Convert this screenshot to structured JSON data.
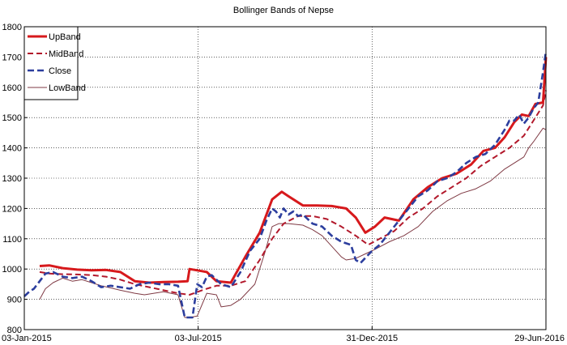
{
  "chart_data": {
    "type": "line",
    "title": "Bollinger Bands of Nepse",
    "xlabel": "",
    "ylabel": "",
    "grid": true,
    "legend_position": "top-left",
    "x_ticks": [
      "03-Jan-2015",
      "03-Jul-2015",
      "31-Dec-2015",
      "29-Jun-2016"
    ],
    "x_tick_days": [
      0,
      181,
      362,
      543
    ],
    "xlim_days": [
      0,
      543
    ],
    "ylim": [
      800,
      1800
    ],
    "y_ticks": [
      800,
      900,
      1000,
      1100,
      1200,
      1300,
      1400,
      1500,
      1600,
      1700,
      1800
    ],
    "series": [
      {
        "name": "UpBand",
        "color": "#d7191c",
        "style": "solid-thick",
        "x_days": [
          16,
          26,
          40,
          55,
          70,
          85,
          100,
          115,
          130,
          145,
          160,
          170,
          172,
          185,
          190,
          200,
          215,
          230,
          245,
          258,
          268,
          275,
          290,
          305,
          320,
          335,
          345,
          355,
          365,
          375,
          390,
          405,
          420,
          435,
          450,
          465,
          478,
          490,
          500,
          510,
          518,
          525,
          532,
          540,
          543
        ],
        "values": [
          1010,
          1012,
          1003,
          998,
          996,
          997,
          990,
          960,
          955,
          957,
          958,
          960,
          1000,
          993,
          990,
          960,
          955,
          1040,
          1120,
          1230,
          1255,
          1240,
          1210,
          1210,
          1208,
          1200,
          1170,
          1120,
          1140,
          1170,
          1160,
          1230,
          1270,
          1300,
          1315,
          1345,
          1390,
          1400,
          1435,
          1485,
          1510,
          1505,
          1545,
          1550,
          1700
        ]
      },
      {
        "name": "MidBand",
        "color": "#b2182b",
        "style": "dashed",
        "x_days": [
          16,
          26,
          40,
          55,
          70,
          85,
          100,
          115,
          130,
          145,
          160,
          172,
          185,
          200,
          215,
          230,
          245,
          258,
          270,
          285,
          300,
          315,
          330,
          345,
          358,
          370,
          385,
          400,
          415,
          430,
          445,
          460,
          475,
          490,
          505,
          520,
          530,
          540,
          543
        ],
        "values": [
          990,
          985,
          983,
          982,
          980,
          975,
          965,
          950,
          940,
          930,
          920,
          915,
          930,
          945,
          945,
          960,
          1030,
          1100,
          1150,
          1175,
          1175,
          1165,
          1140,
          1110,
          1080,
          1100,
          1125,
          1170,
          1200,
          1240,
          1270,
          1300,
          1340,
          1370,
          1400,
          1440,
          1490,
          1540,
          1590
        ]
      },
      {
        "name": "Close",
        "color": "#2c3e9e",
        "style": "dashed-thick",
        "x_days": [
          0,
          5,
          10,
          16,
          22,
          30,
          40,
          50,
          60,
          70,
          80,
          90,
          100,
          110,
          120,
          130,
          140,
          150,
          160,
          167,
          170,
          175,
          180,
          185,
          190,
          195,
          205,
          215,
          225,
          235,
          245,
          252,
          258,
          262,
          266,
          270,
          275,
          280,
          285,
          290,
          300,
          310,
          320,
          330,
          340,
          345,
          350,
          356,
          362,
          370,
          380,
          390,
          400,
          410,
          420,
          430,
          440,
          450,
          460,
          470,
          480,
          490,
          500,
          505,
          510,
          515,
          520,
          525,
          530,
          535,
          540,
          543
        ],
        "values": [
          910,
          925,
          935,
          960,
          985,
          990,
          975,
          970,
          975,
          960,
          940,
          945,
          940,
          935,
          950,
          955,
          950,
          950,
          945,
          840,
          840,
          840,
          950,
          940,
          975,
          980,
          950,
          940,
          990,
          1060,
          1100,
          1160,
          1200,
          1190,
          1170,
          1200,
          1180,
          1190,
          1175,
          1180,
          1150,
          1140,
          1110,
          1090,
          1080,
          1030,
          1020,
          1040,
          1060,
          1080,
          1120,
          1160,
          1200,
          1240,
          1260,
          1290,
          1300,
          1320,
          1350,
          1370,
          1380,
          1410,
          1460,
          1490,
          1490,
          1510,
          1480,
          1500,
          1530,
          1550,
          1650,
          1720
        ]
      },
      {
        "name": "LowBand",
        "color": "#7f3a44",
        "style": "solid-thin",
        "x_days": [
          16,
          22,
          30,
          40,
          50,
          60,
          70,
          80,
          100,
          115,
          125,
          135,
          145,
          160,
          167,
          172,
          180,
          190,
          200,
          205,
          215,
          225,
          240,
          250,
          258,
          265,
          275,
          290,
          300,
          310,
          320,
          330,
          335,
          345,
          355,
          365,
          380,
          395,
          410,
          425,
          440,
          455,
          470,
          485,
          500,
          510,
          520,
          525,
          530,
          540,
          543
        ],
        "values": [
          900,
          935,
          955,
          970,
          960,
          965,
          955,
          945,
          930,
          920,
          915,
          920,
          925,
          915,
          840,
          840,
          845,
          920,
          915,
          875,
          880,
          900,
          950,
          1050,
          1140,
          1150,
          1150,
          1145,
          1130,
          1110,
          1075,
          1040,
          1030,
          1035,
          1050,
          1065,
          1090,
          1110,
          1140,
          1190,
          1225,
          1250,
          1265,
          1290,
          1330,
          1350,
          1370,
          1400,
          1420,
          1465,
          1460
        ]
      }
    ]
  }
}
